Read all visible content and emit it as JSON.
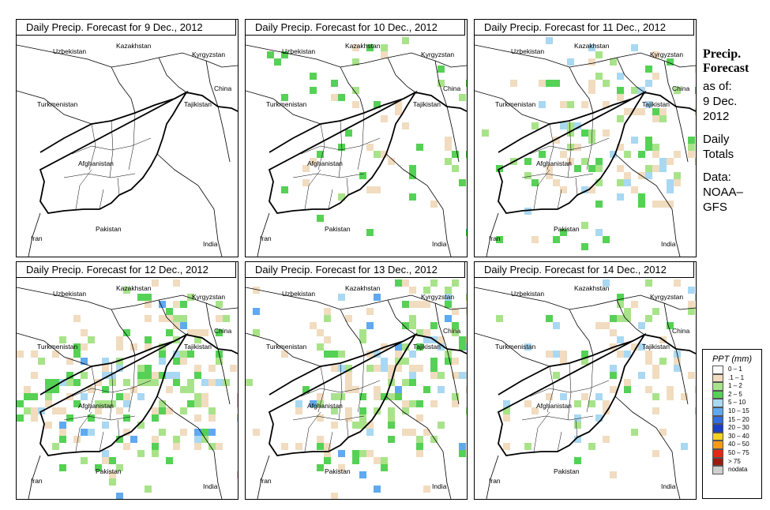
{
  "panels": [
    {
      "title_prefix": "Daily Precip. Forecast for",
      "date": "9 Dec., 2012",
      "intensity": 0.0
    },
    {
      "title_prefix": "Daily Precip. Forecast for",
      "date": "10 Dec., 2012",
      "intensity": 0.25
    },
    {
      "title_prefix": "Daily Precip. Forecast for",
      "date": "11 Dec., 2012",
      "intensity": 0.55
    },
    {
      "title_prefix": "Daily Precip. Forecast for",
      "date": "12 Dec., 2012",
      "intensity": 0.9
    },
    {
      "title_prefix": "Daily Precip. Forecast for",
      "date": "13 Dec., 2012",
      "intensity": 0.85
    },
    {
      "title_prefix": "Daily Precip. Forecast for",
      "date": "14 Dec., 2012",
      "intensity": 0.45
    }
  ],
  "countries": [
    "Uzbekistan",
    "Kazakhstan",
    "Kyrgyzstan",
    "China",
    "Turkmenistan",
    "Tajikistan",
    "Afghanistan",
    "Iran",
    "Pakistan",
    "India"
  ],
  "sidebar": {
    "title_line1": "Precip.",
    "title_line2": "Forecast",
    "asof_label": "as of:",
    "asof_date1": "9 Dec.",
    "asof_date2": "2012",
    "totals_line1": "Daily",
    "totals_line2": "Totals",
    "data_line1": "Data:",
    "data_line2": "NOAA–",
    "data_line3": "GFS"
  },
  "legend": {
    "title": "PPT (mm)",
    "items": [
      {
        "label": "0 – 1",
        "color": "#ffffff"
      },
      {
        "label": ".1 – 1",
        "color": "#f1dcc0"
      },
      {
        "label": "1 – 2",
        "color": "#a8e38a"
      },
      {
        "label": "2 – 5",
        "color": "#55d155"
      },
      {
        "label": "5 – 10",
        "color": "#a9d8f2"
      },
      {
        "label": "10 – 15",
        "color": "#5fa9f0"
      },
      {
        "label": "15 – 20",
        "color": "#2f6fe0"
      },
      {
        "label": "20 – 30",
        "color": "#1a3fc2"
      },
      {
        "label": "30 – 40",
        "color": "#f2d226"
      },
      {
        "label": "40 – 50",
        "color": "#f39a1b"
      },
      {
        "label": "50 – 75",
        "color": "#e02a16"
      },
      {
        "label": "> 75",
        "color": "#9b1c12"
      },
      {
        "label": "nodata",
        "color": "#cfcfcf"
      }
    ]
  }
}
